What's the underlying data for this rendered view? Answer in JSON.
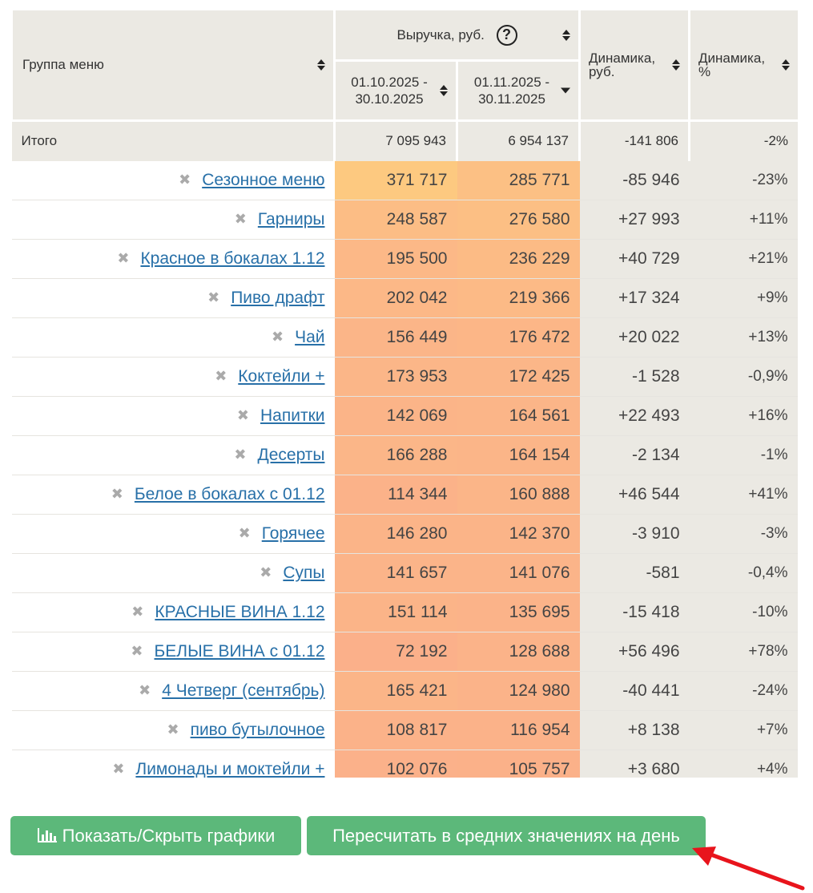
{
  "header": {
    "group": "Группа меню",
    "revenue": "Выручка, руб.",
    "help_icon": "?",
    "period1_line1": "01.10.2025 -",
    "period1_line2": "30.10.2025",
    "period2_line1": "01.11.2025 -",
    "period2_line2": "30.11.2025",
    "dyn_rub_line1": "Динамика,",
    "dyn_rub_line2": "руб.",
    "dyn_pct_line1": "Динамика,",
    "dyn_pct_line2": "%"
  },
  "total": {
    "label": "Итого",
    "p1": "7 095 943",
    "p2": "6 954 137",
    "dyn": "-141 806",
    "pct": "-2%"
  },
  "rows": [
    {
      "name": "Сезонное меню",
      "p1": "371 717",
      "p2": "285 771",
      "dyn": "-85 946",
      "pct": "-23%"
    },
    {
      "name": "Гарниры",
      "p1": "248 587",
      "p2": "276 580",
      "dyn": "+27 993",
      "pct": "+11%"
    },
    {
      "name": "Красное в бокалах 1.12",
      "p1": "195 500",
      "p2": "236 229",
      "dyn": "+40 729",
      "pct": "+21%"
    },
    {
      "name": "Пиво драфт",
      "p1": "202 042",
      "p2": "219 366",
      "dyn": "+17 324",
      "pct": "+9%"
    },
    {
      "name": "Чай",
      "p1": "156 449",
      "p2": "176 472",
      "dyn": "+20 022",
      "pct": "+13%"
    },
    {
      "name": "Коктейли +",
      "p1": "173 953",
      "p2": "172 425",
      "dyn": "-1 528",
      "pct": "-0,9%"
    },
    {
      "name": "Напитки",
      "p1": "142 069",
      "p2": "164 561",
      "dyn": "+22 493",
      "pct": "+16%"
    },
    {
      "name": "Десерты",
      "p1": "166 288",
      "p2": "164 154",
      "dyn": "-2 134",
      "pct": "-1%"
    },
    {
      "name": "Белое в бокалах с 01.12",
      "p1": "114 344",
      "p2": "160 888",
      "dyn": "+46 544",
      "pct": "+41%"
    },
    {
      "name": "Горячее",
      "p1": "146 280",
      "p2": "142 370",
      "dyn": "-3 910",
      "pct": "-3%"
    },
    {
      "name": "Супы",
      "p1": "141 657",
      "p2": "141 076",
      "dyn": "-581",
      "pct": "-0,4%"
    },
    {
      "name": "КРАСНЫЕ ВИНА 1.12",
      "p1": "151 114",
      "p2": "135 695",
      "dyn": "-15 418",
      "pct": "-10%"
    },
    {
      "name": "БЕЛЫЕ ВИНА с 01.12",
      "p1": "72 192",
      "p2": "128 688",
      "dyn": "+56 496",
      "pct": "+78%"
    },
    {
      "name": "4 Четверг (сентябрь)",
      "p1": "165 421",
      "p2": "124 980",
      "dyn": "-40 441",
      "pct": "-24%"
    },
    {
      "name": "пиво бутылочное",
      "p1": "108 817",
      "p2": "116 954",
      "dyn": "+8 138",
      "pct": "+7%"
    },
    {
      "name": "Лимонады и моктейли +",
      "p1": "102 076",
      "p2": "105 757",
      "dyn": "+3 680",
      "pct": "+4%"
    }
  ],
  "remove_icon": "✖",
  "buttons": {
    "charts": "Показать/Скрыть графики",
    "recalc": "Пересчитать в средних значениях на день"
  },
  "colors": {
    "header_bg": "#ebe9e3",
    "heat_low": "#fbb08a",
    "heat_high": "#fdc980",
    "link": "#2870a8",
    "button": "#5cb87a",
    "arrow": "#e8141c"
  }
}
